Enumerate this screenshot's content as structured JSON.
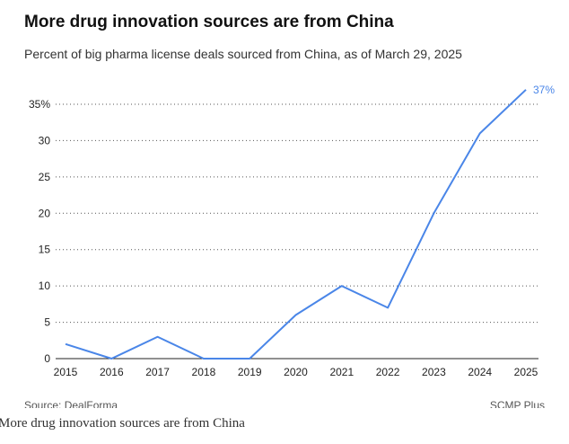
{
  "chart_data": {
    "type": "line",
    "title": "More drug innovation sources are from China",
    "subtitle": "Percent of big pharma license deals sourced from China, as of March 29, 2025",
    "x": [
      2015,
      2016,
      2017,
      2018,
      2019,
      2020,
      2021,
      2022,
      2023,
      2024,
      2025
    ],
    "values": [
      2,
      0,
      3,
      0,
      0,
      6,
      10,
      7,
      20,
      31,
      37
    ],
    "end_label": "37%",
    "ylim": [
      0,
      37
    ],
    "yticks": [
      0,
      5,
      10,
      15,
      20,
      25,
      30,
      35
    ],
    "ytick_labels": [
      "0",
      "5",
      "10",
      "15",
      "20",
      "25",
      "30",
      "35%"
    ],
    "xtick_labels": [
      "2015",
      "2016",
      "2017",
      "2018",
      "2019",
      "2020",
      "2021",
      "2022",
      "2023",
      "2024",
      "2025"
    ],
    "grid": "horizontal dotted",
    "line_color": "#4a86e8"
  },
  "source": "Source: DealForma",
  "credit": "SCMP Plus",
  "caption": "More drug innovation sources are from China"
}
